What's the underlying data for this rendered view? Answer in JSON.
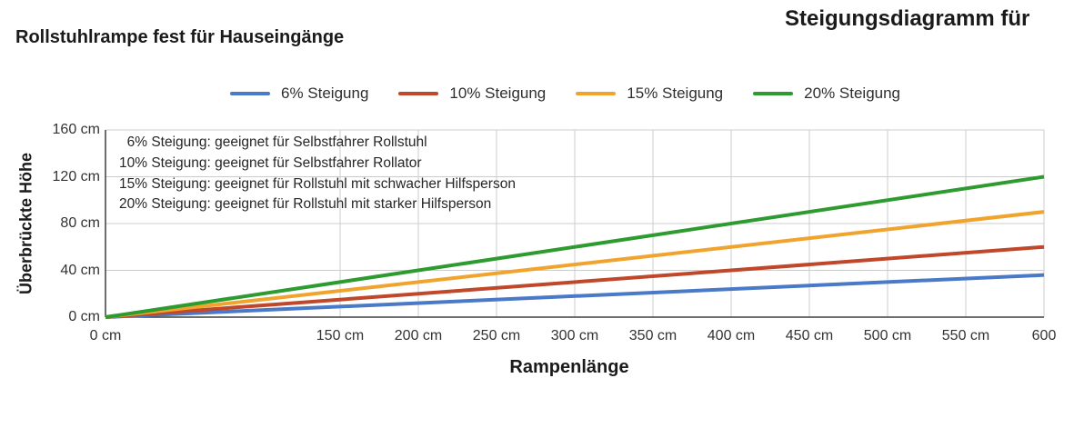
{
  "header": {
    "title_left": "Rollstuhlrampe fest für Hauseingänge",
    "title_right": "Steigungsdiagramm für"
  },
  "chart_data": {
    "type": "line",
    "title": "Steigungsdiagramm für",
    "subtitle": "Rollstuhlrampe fest für Hauseingänge",
    "xlabel": "Rampenlänge",
    "ylabel": "Überbrückte Höhe",
    "unit": "cm",
    "xlim": [
      0,
      600
    ],
    "ylim": [
      0,
      160
    ],
    "grid": true,
    "legend_position": "top",
    "x_ticks": [
      {
        "value": 0,
        "label": "0 cm",
        "grid": false
      },
      {
        "value": 150,
        "label": "150 cm",
        "grid": true
      },
      {
        "value": 200,
        "label": "200 cm",
        "grid": true
      },
      {
        "value": 250,
        "label": "250 cm",
        "grid": true
      },
      {
        "value": 300,
        "label": "300 cm",
        "grid": true
      },
      {
        "value": 350,
        "label": "350 cm",
        "grid": true
      },
      {
        "value": 400,
        "label": "400 cm",
        "grid": true
      },
      {
        "value": 450,
        "label": "450 cm",
        "grid": true
      },
      {
        "value": 500,
        "label": "500 cm",
        "grid": true
      },
      {
        "value": 550,
        "label": "550 cm",
        "grid": true
      },
      {
        "value": 600,
        "label": "600",
        "grid": true
      }
    ],
    "y_ticks": [
      {
        "value": 0,
        "label": "0 cm"
      },
      {
        "value": 40,
        "label": "40 cm"
      },
      {
        "value": 80,
        "label": "80 cm"
      },
      {
        "value": 120,
        "label": "120 cm"
      },
      {
        "value": 160,
        "label": "160 cm"
      }
    ],
    "series": [
      {
        "name": "6% Steigung",
        "slope_percent": 6,
        "color": "#4a79c8",
        "x": [
          0,
          600
        ],
        "y": [
          0,
          36
        ]
      },
      {
        "name": "10% Steigung",
        "slope_percent": 10,
        "color": "#c04729",
        "x": [
          0,
          600
        ],
        "y": [
          0,
          60
        ]
      },
      {
        "name": "15% Steigung",
        "slope_percent": 15,
        "color": "#f0a42e",
        "x": [
          0,
          600
        ],
        "y": [
          0,
          90
        ]
      },
      {
        "name": "20% Steigung",
        "slope_percent": 20,
        "color": "#2d9b2f",
        "x": [
          0,
          600
        ],
        "y": [
          0,
          120
        ]
      }
    ],
    "annotations": [
      "  6% Steigung: geeignet für Selbstfahrer Rollstuhl",
      "10% Steigung: geeignet für Selbstfahrer Rollator",
      "15% Steigung: geeignet für Rollstuhl mit schwacher Hilfsperson",
      "20% Steigung: geeignet für Rollstuhl mit starker Hilfsperson"
    ],
    "colors": {
      "grid": "#cccccc",
      "axis": "#3f3f3f",
      "tick_text": "#333333",
      "title_text": "#1a1a1a"
    }
  }
}
